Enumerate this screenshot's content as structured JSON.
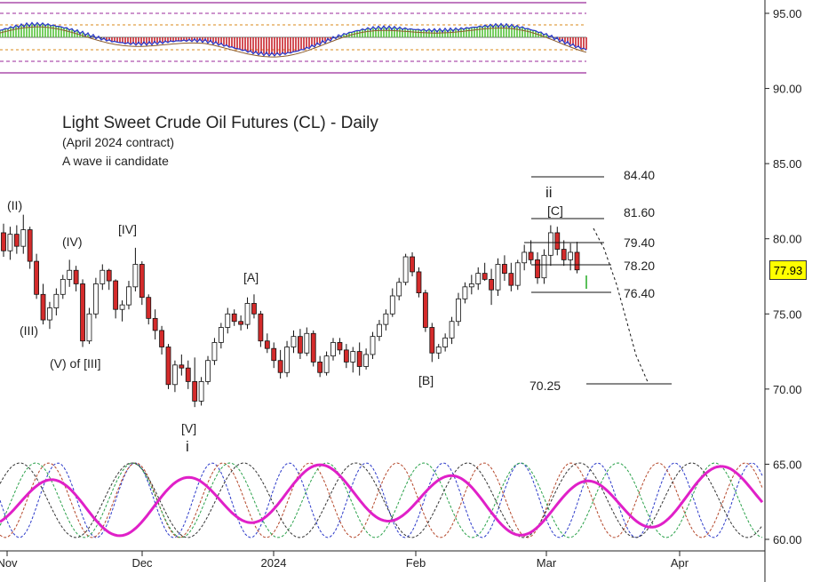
{
  "chart_data": {
    "type": "candlestick",
    "title": "Light Sweet Crude Oil Futures (CL) - Daily",
    "subtitle_1": "(April 2024 contract)",
    "subtitle_2": "A wave ii candidate",
    "y_ticks": [
      "95.00",
      "90.00",
      "85.00",
      "80.00",
      "75.00",
      "70.00",
      "65.00",
      "60.00"
    ],
    "x_ticks": [
      "Nov",
      "Dec",
      "2024",
      "Feb",
      "Mar",
      "Apr"
    ],
    "ylim": [
      60,
      96
    ],
    "last_price": "77.93",
    "levels": [
      {
        "label": "84.40",
        "value": 84.4
      },
      {
        "label": "81.60",
        "value": 81.6
      },
      {
        "label": "79.40",
        "value": 79.4
      },
      {
        "label": "78.20",
        "value": 78.2
      },
      {
        "label": "76.40",
        "value": 76.4
      },
      {
        "label": "70.25",
        "value": 70.25
      }
    ],
    "wave_labels": [
      "(II)",
      "(IV)",
      "[IV]",
      "(III)",
      "(V) of [III]",
      "[V]",
      "i",
      "[A]",
      "[B]",
      "ii",
      "[C]"
    ],
    "candles": [
      [
        80.4,
        81.0,
        78.8,
        79.2
      ],
      [
        79.2,
        80.8,
        78.6,
        80.3
      ],
      [
        80.3,
        80.9,
        79.0,
        79.5
      ],
      [
        79.5,
        81.6,
        79.0,
        80.6
      ],
      [
        80.6,
        80.8,
        78.0,
        78.5
      ],
      [
        78.5,
        79.0,
        76.0,
        76.3
      ],
      [
        76.3,
        77.0,
        74.3,
        74.6
      ],
      [
        74.6,
        75.8,
        74.0,
        75.4
      ],
      [
        75.4,
        76.7,
        74.9,
        76.3
      ],
      [
        76.3,
        77.6,
        76.0,
        77.3
      ],
      [
        77.3,
        78.6,
        76.8,
        77.9
      ],
      [
        77.9,
        78.2,
        76.5,
        77.0
      ],
      [
        77.0,
        77.3,
        72.8,
        73.2
      ],
      [
        73.2,
        75.4,
        73.0,
        75.0
      ],
      [
        75.0,
        77.4,
        74.7,
        77.0
      ],
      [
        77.0,
        78.3,
        76.6,
        77.9
      ],
      [
        77.9,
        78.0,
        76.6,
        77.2
      ],
      [
        77.2,
        77.3,
        74.7,
        75.3
      ],
      [
        75.3,
        75.9,
        74.5,
        75.6
      ],
      [
        75.6,
        77.2,
        75.3,
        76.8
      ],
      [
        76.8,
        79.4,
        76.5,
        78.3
      ],
      [
        78.3,
        78.5,
        75.6,
        76.1
      ],
      [
        76.1,
        76.3,
        74.3,
        74.7
      ],
      [
        74.7,
        75.3,
        73.3,
        73.9
      ],
      [
        73.9,
        74.2,
        72.3,
        72.8
      ],
      [
        72.8,
        73.0,
        70.0,
        70.3
      ],
      [
        70.3,
        71.9,
        69.8,
        71.6
      ],
      [
        71.6,
        72.3,
        70.9,
        71.4
      ],
      [
        71.4,
        71.9,
        70.0,
        70.5
      ],
      [
        70.5,
        72.1,
        68.8,
        69.2
      ],
      [
        69.2,
        70.8,
        68.9,
        70.5
      ],
      [
        70.5,
        72.2,
        70.3,
        71.9
      ],
      [
        71.9,
        73.4,
        71.6,
        73.1
      ],
      [
        73.1,
        74.4,
        72.7,
        74.1
      ],
      [
        74.1,
        75.4,
        73.7,
        75.0
      ],
      [
        75.0,
        75.3,
        74.2,
        74.5
      ],
      [
        74.5,
        74.9,
        73.9,
        74.3
      ],
      [
        74.3,
        76.1,
        74.0,
        75.7
      ],
      [
        75.7,
        76.3,
        74.7,
        75.0
      ],
      [
        75.0,
        75.2,
        72.8,
        73.2
      ],
      [
        73.2,
        73.7,
        72.4,
        72.7
      ],
      [
        72.7,
        73.1,
        71.4,
        71.9
      ],
      [
        71.9,
        72.6,
        70.7,
        71.1
      ],
      [
        71.1,
        73.2,
        70.8,
        72.8
      ],
      [
        72.8,
        73.9,
        72.4,
        73.5
      ],
      [
        73.5,
        74.0,
        72.0,
        72.4
      ],
      [
        72.4,
        74.1,
        72.2,
        73.7
      ],
      [
        73.7,
        73.9,
        71.5,
        71.8
      ],
      [
        71.8,
        72.2,
        70.8,
        71.1
      ],
      [
        71.1,
        72.5,
        70.9,
        72.2
      ],
      [
        72.2,
        73.4,
        71.9,
        73.1
      ],
      [
        73.1,
        73.4,
        72.3,
        72.6
      ],
      [
        72.6,
        73.0,
        71.4,
        71.8
      ],
      [
        71.8,
        72.8,
        71.1,
        72.5
      ],
      [
        72.5,
        73.1,
        70.9,
        71.5
      ],
      [
        71.5,
        72.7,
        71.3,
        72.3
      ],
      [
        72.3,
        73.8,
        72.0,
        73.5
      ],
      [
        73.5,
        74.6,
        73.2,
        74.3
      ],
      [
        74.3,
        75.3,
        73.9,
        75.0
      ],
      [
        75.0,
        76.7,
        74.8,
        76.2
      ],
      [
        76.2,
        77.4,
        75.9,
        77.1
      ],
      [
        77.1,
        79.0,
        76.9,
        78.8
      ],
      [
        78.8,
        79.1,
        77.5,
        77.8
      ],
      [
        77.8,
        78.1,
        76.1,
        76.4
      ],
      [
        76.4,
        76.6,
        73.8,
        74.1
      ],
      [
        74.1,
        74.4,
        71.8,
        72.4
      ],
      [
        72.4,
        73.0,
        72.0,
        72.8
      ],
      [
        72.8,
        73.7,
        72.5,
        73.4
      ],
      [
        73.4,
        74.8,
        73.0,
        74.5
      ],
      [
        74.5,
        76.4,
        74.2,
        76.0
      ],
      [
        76.0,
        77.1,
        75.7,
        76.8
      ],
      [
        76.8,
        77.6,
        76.3,
        77.0
      ],
      [
        77.0,
        78.1,
        76.6,
        77.7
      ],
      [
        77.7,
        78.4,
        77.2,
        77.3
      ],
      [
        77.3,
        78.0,
        75.6,
        76.6
      ],
      [
        76.6,
        78.7,
        76.2,
        78.3
      ],
      [
        78.3,
        78.9,
        77.2,
        77.7
      ],
      [
        77.7,
        78.4,
        76.5,
        76.9
      ],
      [
        76.9,
        78.6,
        76.6,
        78.4
      ],
      [
        78.4,
        79.6,
        77.9,
        79.1
      ],
      [
        79.1,
        79.9,
        78.3,
        78.6
      ],
      [
        78.6,
        79.1,
        77.0,
        77.4
      ],
      [
        77.4,
        79.3,
        77.0,
        78.9
      ],
      [
        78.9,
        80.9,
        78.2,
        80.4
      ],
      [
        80.4,
        80.8,
        78.9,
        79.3
      ],
      [
        79.3,
        79.9,
        78.2,
        78.6
      ],
      [
        78.6,
        79.7,
        77.9,
        79.1
      ],
      [
        79.1,
        79.8,
        77.7,
        77.93
      ]
    ]
  }
}
